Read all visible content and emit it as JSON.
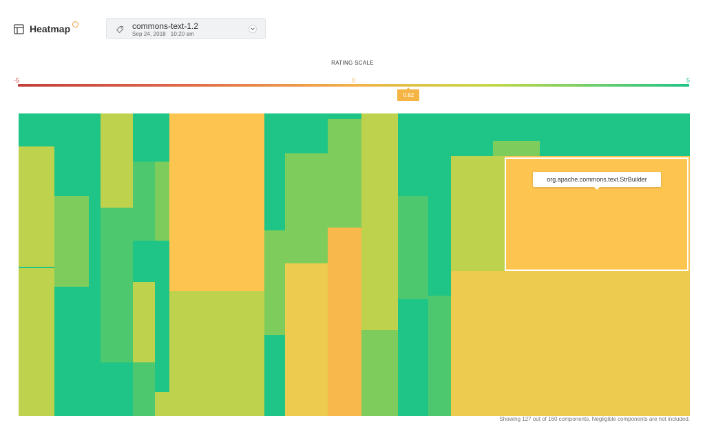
{
  "header": {
    "title": "Heatmap",
    "icon": "layout-icon",
    "info_icon": "info-icon"
  },
  "project_selector": {
    "name": "commons-text-1.2",
    "date": "Sep 24, 2018",
    "time": "10:20 am",
    "tag_icon": "tag-icon",
    "chevron_icon": "chevron-down-icon"
  },
  "rating_scale": {
    "title": "RATING SCALE",
    "min_label": "-5",
    "mid_label": "0",
    "max_label": "5",
    "current_value": "0.82",
    "min_value": -5,
    "max_value": 5,
    "current": 0.82,
    "colors": {
      "negative": "#c0403a",
      "neutral": "#f1b24a",
      "positive": "#1fc487"
    }
  },
  "tooltip": {
    "component": "org.apache.commons.text.StrBuilder"
  },
  "footer": {
    "note": "Showing 127 out of 160 components. Negligible components are not included."
  },
  "palette": {
    "emerald": "#1fc487",
    "green": "#4dc86e",
    "leaf": "#7dcc5c",
    "lime": "#bfd24e",
    "yellow": "#eccb4f",
    "amber": "#fdc450",
    "orange": "#f9b84b"
  }
}
